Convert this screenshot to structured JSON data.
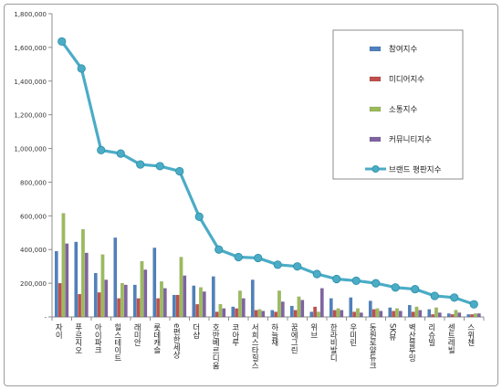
{
  "chart_data": {
    "type": "bar",
    "categories": [
      "자이",
      "푸르지오",
      "아이파크",
      "힐스테이트",
      "래미안",
      "롯데캐슬",
      "e편한세상",
      "더샵",
      "호반베르디움",
      "코아루",
      "서희스타힐스",
      "하늘채",
      "꿈에그린",
      "위브",
      "한라비발디",
      "우미린",
      "동원로얄듀크",
      "SK뷰",
      "벽산블루밍",
      "리슈빌",
      "센트레빌",
      "스위첸"
    ],
    "series": [
      {
        "name": "참여지수",
        "color": "#4f81bd",
        "values": [
          390000,
          445000,
          260000,
          470000,
          190000,
          410000,
          130000,
          185000,
          240000,
          60000,
          220000,
          40000,
          65000,
          30000,
          110000,
          115000,
          95000,
          55000,
          70000,
          45000,
          20000,
          15000
        ]
      },
      {
        "name": "미디어지수",
        "color": "#c0504d",
        "values": [
          200000,
          135000,
          145000,
          110000,
          110000,
          110000,
          130000,
          75000,
          30000,
          50000,
          40000,
          30000,
          40000,
          60000,
          40000,
          30000,
          45000,
          35000,
          30000,
          15000,
          15000,
          15000
        ]
      },
      {
        "name": "소통지수",
        "color": "#9bbb59",
        "values": [
          615000,
          520000,
          370000,
          200000,
          330000,
          210000,
          355000,
          175000,
          75000,
          155000,
          45000,
          155000,
          120000,
          30000,
          50000,
          50000,
          50000,
          50000,
          60000,
          55000,
          40000,
          20000
        ]
      },
      {
        "name": "커뮤니티지수",
        "color": "#8064a2",
        "values": [
          435000,
          380000,
          220000,
          190000,
          280000,
          170000,
          245000,
          150000,
          50000,
          110000,
          35000,
          90000,
          100000,
          170000,
          40000,
          25000,
          35000,
          35000,
          40000,
          25000,
          25000,
          20000
        ]
      }
    ],
    "line": {
      "name": "브랜드 평판지수",
      "color": "#4bacc6",
      "values": [
        1635000,
        1475000,
        990000,
        970000,
        905000,
        895000,
        865000,
        595000,
        400000,
        355000,
        350000,
        310000,
        300000,
        255000,
        225000,
        215000,
        200000,
        175000,
        165000,
        125000,
        115000,
        75000
      ]
    },
    "y_ticks": [
      "-",
      "200,000",
      "400,000",
      "600,000",
      "800,000",
      "1,000,000",
      "1,200,000",
      "1,400,000",
      "1,600,000",
      "1,800,000"
    ],
    "ylim": [
      0,
      1800000
    ],
    "legend": "top-right",
    "grid": false
  }
}
